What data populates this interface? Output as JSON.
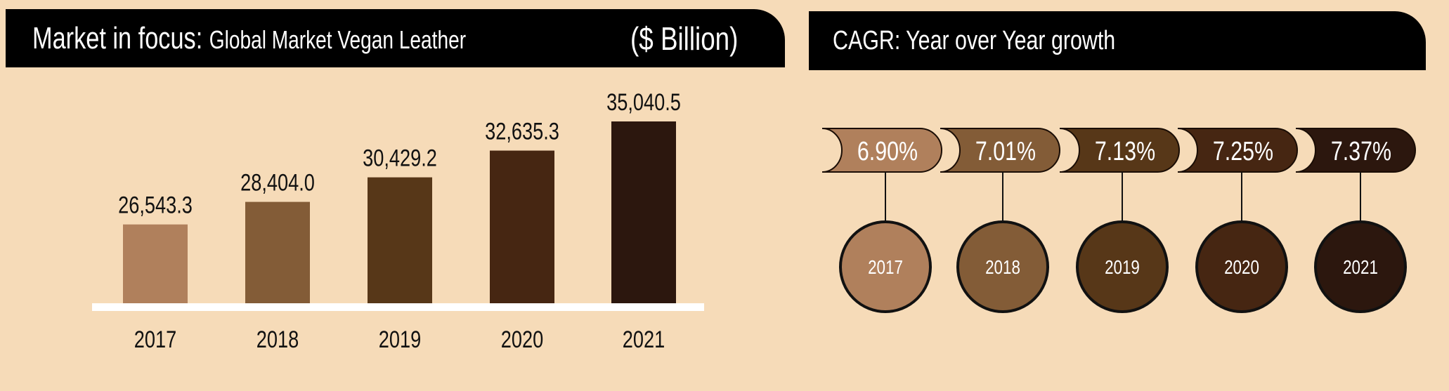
{
  "left_panel": {
    "title_prefix": "Market in focus:",
    "title_rest": "Global Market Vegan Leather",
    "unit": "($ Billion)"
  },
  "right_panel": {
    "title": "CAGR: Year over Year growth"
  },
  "colors": [
    "#b0805c",
    "#835c37",
    "#573718",
    "#462612",
    "#2c170e"
  ],
  "chart_data": [
    {
      "type": "bar",
      "title": "Market in focus: Global Market Vegan Leather",
      "ylabel": "($ Billion)",
      "categories": [
        "2017",
        "2018",
        "2019",
        "2020",
        "2021"
      ],
      "values": [
        26543.3,
        28404.0,
        30429.2,
        32635.3,
        35040.5
      ],
      "value_labels": [
        "26,543.3",
        "28,404.0",
        "30,429.2",
        "32,635.3",
        "35,040.5"
      ],
      "grid": false,
      "legend": "none"
    },
    {
      "type": "table",
      "title": "CAGR: Year over Year growth",
      "categories": [
        "2017",
        "2018",
        "2019",
        "2020",
        "2021"
      ],
      "values": [
        6.9,
        7.01,
        7.13,
        7.25,
        7.37
      ],
      "value_labels": [
        "6.90%",
        "7.01%",
        "7.13%",
        "7.25%",
        "7.37%"
      ]
    }
  ]
}
